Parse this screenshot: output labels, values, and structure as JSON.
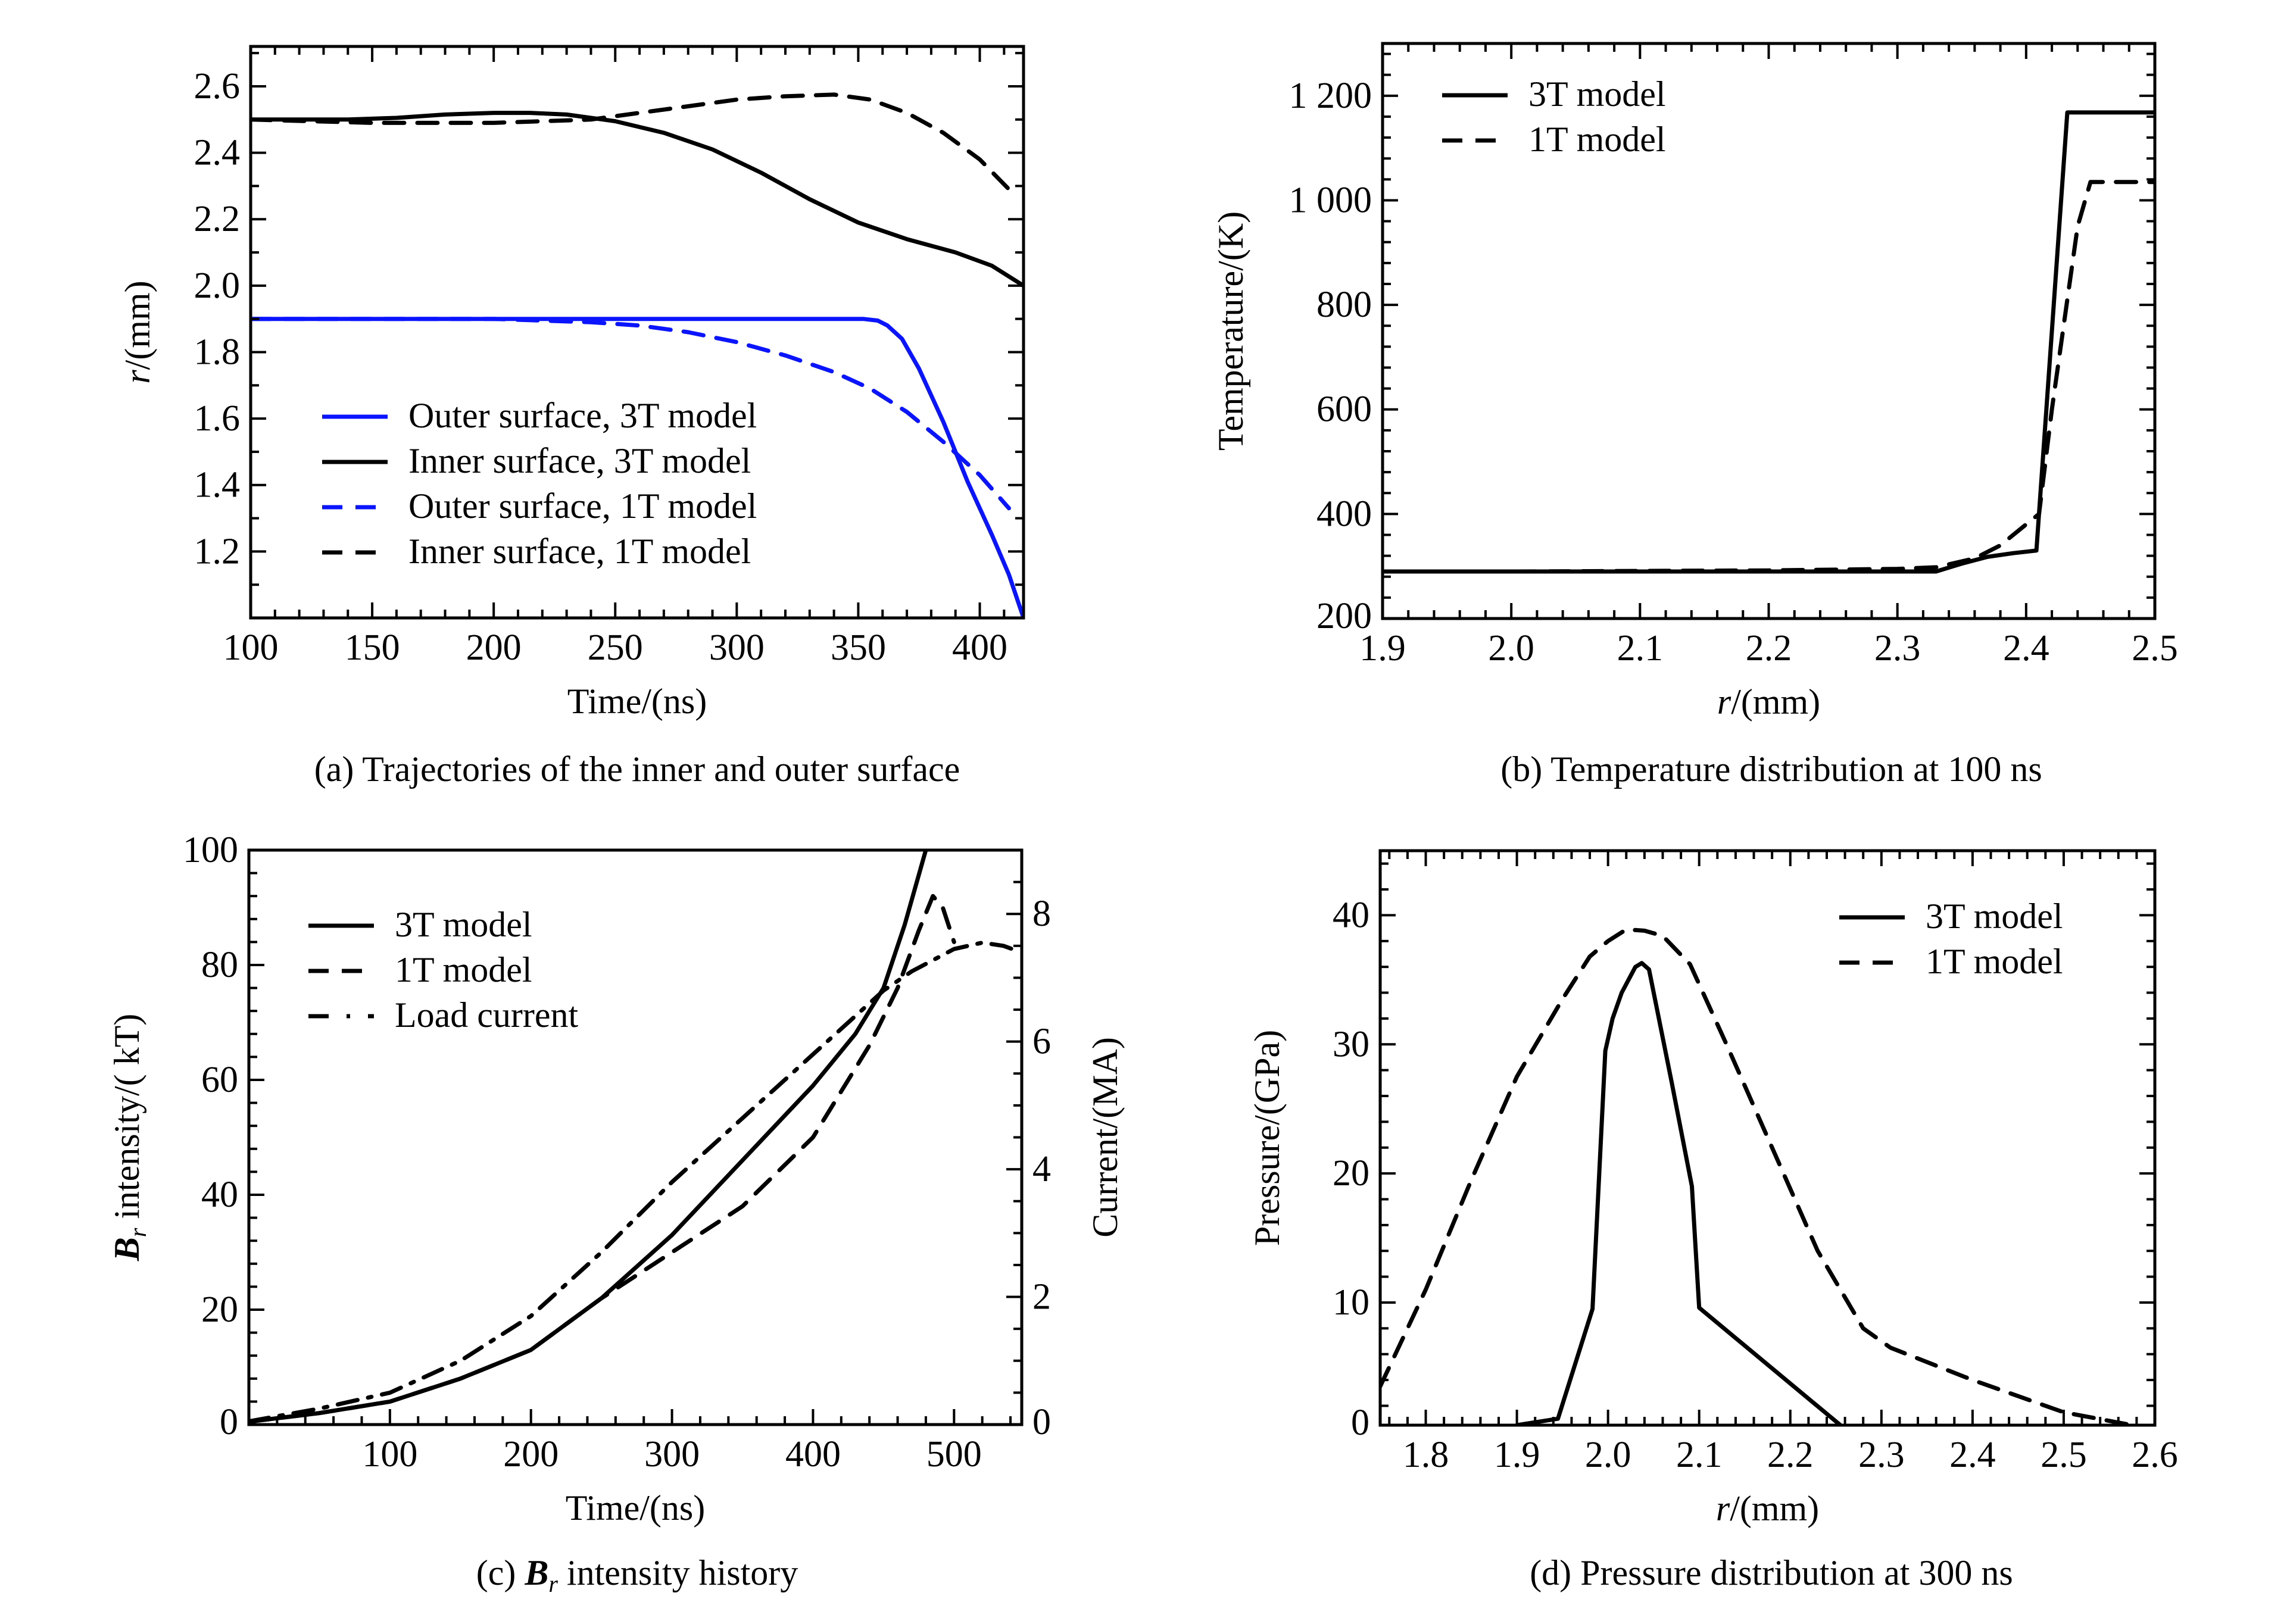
{
  "figure": {
    "captions": [
      "(a) Trajectories of the inner and outer surface",
      "(b) Temperature distribution at 100 ns",
      "(c) B_r intensity history",
      "(d) Pressure distribution at 300 ns"
    ]
  },
  "colors": {
    "blue": "#0a14ff",
    "black": "#000000"
  },
  "chart_data": [
    {
      "id": "a",
      "type": "line",
      "title": "(a) Trajectories of the inner and outer surface",
      "xlabel": "Time/(ns)",
      "ylabel": "r/(mm)",
      "ylabel_italic_part": "r",
      "xlim": [
        100,
        418
      ],
      "ylim": [
        1.0,
        2.72
      ],
      "xticks": [
        100,
        150,
        200,
        250,
        300,
        350,
        400
      ],
      "yticks": [
        1.2,
        1.4,
        1.6,
        1.8,
        2.0,
        2.2,
        2.4,
        2.6
      ],
      "ytick_format": "1dp",
      "legend_position": "lower-left",
      "series": [
        {
          "name": "Outer surface, 3T model",
          "color": "#0a14ff",
          "dash": "solid",
          "x": [
            100,
            150,
            200,
            250,
            300,
            340,
            352,
            358,
            362,
            368,
            375,
            385,
            395,
            405,
            412,
            418
          ],
          "y": [
            1.9,
            1.9,
            1.9,
            1.9,
            1.9,
            1.9,
            1.9,
            1.895,
            1.88,
            1.84,
            1.75,
            1.59,
            1.41,
            1.25,
            1.13,
            1.0
          ]
        },
        {
          "name": "Inner surface, 3T model",
          "color": "#000000",
          "dash": "solid",
          "x": [
            100,
            140,
            160,
            180,
            200,
            215,
            230,
            250,
            270,
            290,
            310,
            330,
            350,
            370,
            390,
            405,
            418
          ],
          "y": [
            2.5,
            2.5,
            2.505,
            2.515,
            2.52,
            2.52,
            2.515,
            2.495,
            2.46,
            2.41,
            2.34,
            2.26,
            2.19,
            2.14,
            2.1,
            2.06,
            2.0
          ]
        },
        {
          "name": "Outer surface, 1T model",
          "color": "#0a14ff",
          "dash": "dashed",
          "x": [
            100,
            150,
            200,
            240,
            260,
            280,
            300,
            320,
            340,
            355,
            370,
            385,
            400,
            412
          ],
          "y": [
            1.9,
            1.9,
            1.9,
            1.89,
            1.88,
            1.86,
            1.83,
            1.79,
            1.74,
            1.69,
            1.62,
            1.53,
            1.43,
            1.33
          ]
        },
        {
          "name": "Inner surface, 1T model",
          "color": "#000000",
          "dash": "dashed",
          "x": [
            100,
            150,
            200,
            240,
            260,
            280,
            300,
            320,
            340,
            355,
            370,
            385,
            400,
            412
          ],
          "y": [
            2.5,
            2.49,
            2.49,
            2.5,
            2.52,
            2.54,
            2.56,
            2.57,
            2.575,
            2.56,
            2.52,
            2.46,
            2.38,
            2.29
          ]
        }
      ]
    },
    {
      "id": "b",
      "type": "line",
      "title": "(b) Temperature distribution at 100 ns",
      "xlabel": "r/(mm)",
      "xlabel_italic_part": "r",
      "ylabel": "Temperature/(K)",
      "xlim": [
        1.9,
        2.5
      ],
      "ylim": [
        200,
        1300
      ],
      "xticks": [
        1.9,
        2.0,
        2.1,
        2.2,
        2.3,
        2.4,
        2.5
      ],
      "xtick_format": "1dp",
      "yticks": [
        200,
        400,
        600,
        800,
        1000,
        1200
      ],
      "ytick_labels": [
        "200",
        "400",
        "600",
        "800",
        "1 000",
        "1 200"
      ],
      "legend_position": "upper-left",
      "series": [
        {
          "name": "3T model",
          "color": "#000000",
          "dash": "solid",
          "x": [
            1.9,
            2.0,
            2.1,
            2.2,
            2.3,
            2.33,
            2.35,
            2.37,
            2.39,
            2.408,
            2.432,
            2.5
          ],
          "y": [
            290,
            290,
            290,
            290,
            290,
            290,
            305,
            318,
            325,
            330,
            1168,
            1168
          ]
        },
        {
          "name": "1T model",
          "color": "#000000",
          "dash": "dashed",
          "x": [
            1.9,
            2.0,
            2.1,
            2.2,
            2.3,
            2.33,
            2.36,
            2.38,
            2.4,
            2.41,
            2.42,
            2.44,
            2.45,
            2.5
          ],
          "y": [
            290,
            290,
            291,
            292,
            295,
            298,
            315,
            340,
            380,
            400,
            600,
            950,
            1035,
            1035
          ]
        }
      ]
    },
    {
      "id": "c",
      "type": "line",
      "title": "(c) B_r intensity history",
      "xlabel": "Time/(ns)",
      "ylabel": "B_r intensity/( kT)",
      "y2label": "Current/(MA)",
      "xlim": [
        0,
        548
      ],
      "ylim": [
        0,
        100
      ],
      "y2lim": [
        0,
        9
      ],
      "xticks": [
        100,
        200,
        300,
        400,
        500
      ],
      "yticks": [
        0,
        20,
        40,
        60,
        80,
        100
      ],
      "y2ticks": [
        0,
        2,
        4,
        6,
        8
      ],
      "legend_position": "upper-left",
      "series": [
        {
          "name": "3T model",
          "color": "#000000",
          "dash": "solid",
          "axis": "left",
          "x": [
            0,
            50,
            100,
            150,
            200,
            250,
            300,
            350,
            400,
            430,
            450,
            465,
            480
          ],
          "y": [
            0.5,
            2,
            4,
            8,
            13,
            22,
            33,
            46,
            59,
            68,
            76,
            87,
            100
          ]
        },
        {
          "name": "1T model",
          "color": "#000000",
          "dash": "dashed",
          "axis": "left",
          "x": [
            0,
            50,
            100,
            150,
            200,
            250,
            300,
            350,
            400,
            420,
            440,
            460,
            475,
            485,
            492,
            500
          ],
          "y": [
            0.5,
            2,
            4,
            8,
            13,
            22,
            30,
            38,
            50,
            58,
            66,
            76,
            86,
            92,
            90,
            84
          ]
        },
        {
          "name": "Load current",
          "color": "#000000",
          "dash": "dashdot",
          "axis": "right",
          "x": [
            0,
            50,
            100,
            150,
            200,
            250,
            300,
            350,
            400,
            430,
            450,
            470,
            500,
            520,
            535,
            545
          ],
          "y": [
            0.05,
            0.25,
            0.5,
            1.0,
            1.7,
            2.7,
            3.8,
            4.8,
            5.8,
            6.4,
            6.8,
            7.1,
            7.45,
            7.55,
            7.5,
            7.42
          ]
        }
      ]
    },
    {
      "id": "d",
      "type": "line",
      "title": "(d) Pressure distribution at 300 ns",
      "xlabel": "r/(mm)",
      "xlabel_italic_part": "r",
      "ylabel": "Pressure/(GPa)",
      "xlim": [
        1.75,
        2.6
      ],
      "ylim": [
        0.5,
        45
      ],
      "xticks": [
        1.8,
        1.9,
        2.0,
        2.1,
        2.2,
        2.3,
        2.4,
        2.5,
        2.6
      ],
      "xtick_format": "1dp",
      "yticks": [
        0,
        10,
        20,
        30,
        40
      ],
      "legend_position": "upper-right",
      "series": [
        {
          "name": "3T model",
          "color": "#000000",
          "dash": "solid",
          "x": [
            1.9,
            1.945,
            1.983,
            1.997,
            2.005,
            2.015,
            2.03,
            2.037,
            2.045,
            2.07,
            2.092,
            2.1,
            2.255
          ],
          "y": [
            0.5,
            1,
            9.5,
            29.5,
            32,
            34,
            36,
            36.3,
            35.8,
            27,
            19,
            9.6,
            0.5
          ]
        },
        {
          "name": "1T model",
          "color": "#000000",
          "dash": "dashed",
          "x": [
            1.75,
            1.8,
            1.85,
            1.9,
            1.95,
            1.98,
            2.0,
            2.02,
            2.04,
            2.06,
            2.09,
            2.13,
            2.18,
            2.23,
            2.28,
            2.31,
            2.4,
            2.5,
            2.575
          ],
          "y": [
            3.5,
            11,
            19.5,
            27.5,
            33.5,
            36.8,
            38,
            38.9,
            38.8,
            38.4,
            36.2,
            30,
            22,
            14,
            8,
            6.5,
            4,
            1.5,
            0.5
          ]
        }
      ]
    }
  ]
}
